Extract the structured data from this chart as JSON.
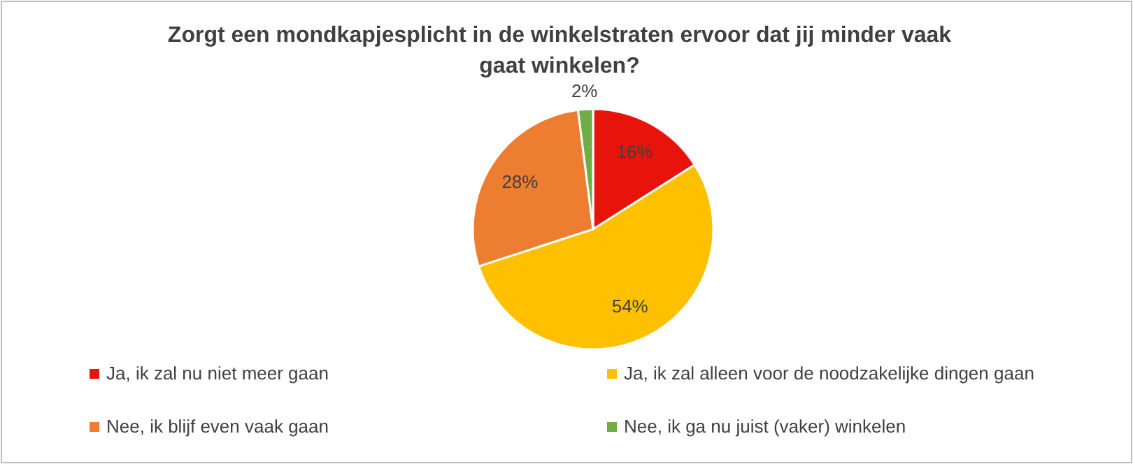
{
  "chart_data": {
    "type": "pie",
    "title": "Zorgt een mondkapjesplicht in de winkelstraten ervoor dat jij minder vaak gaat winkelen?",
    "categories": [
      "Ja, ik zal nu niet meer gaan",
      "Ja, ik zal alleen voor de noodzakelijke dingen gaan",
      "Nee, ik blijf even vaak gaan",
      "Nee, ik ga nu juist (vaker) winkelen"
    ],
    "values": [
      16,
      54,
      28,
      2
    ],
    "value_labels": [
      "16%",
      "54%",
      "28%",
      "2%"
    ],
    "colors": [
      "#e8140c",
      "#ffc000",
      "#ed7d31",
      "#70ad47"
    ],
    "legend": "bottom"
  }
}
